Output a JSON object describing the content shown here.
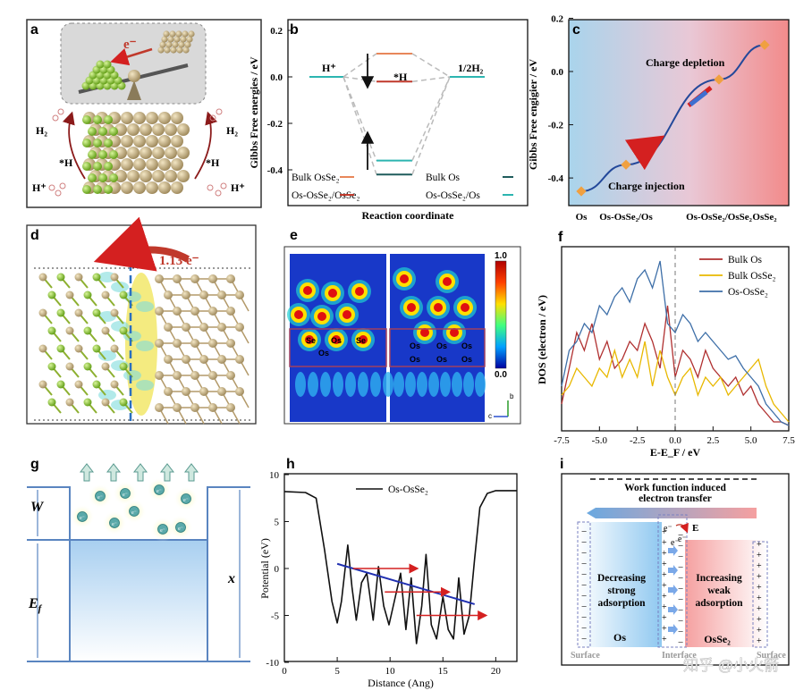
{
  "panels": {
    "a": {
      "letter": "a",
      "electron": "e⁻",
      "h2_left": "H₂",
      "h2_right": "H₂",
      "star_h_left": "*H",
      "star_h_right": "*H",
      "hplus_left": "H⁺",
      "hplus_right": "H⁺"
    },
    "d": {
      "letter": "d",
      "charge": "1.13 e⁻"
    },
    "e": {
      "letter": "e",
      "cb_max": "1.0",
      "cb_min": "0.0",
      "atom_os": "Os",
      "atom_se": "Se",
      "axis_b": "b",
      "axis_c": "c"
    },
    "g": {
      "letter": "g",
      "w_label": "W",
      "ef_label": "E",
      "ef_sub": "f",
      "x_label": "x",
      "electron": "e⁻"
    },
    "i": {
      "letter": "i",
      "title_line1": "Work function induced",
      "title_line2": "electron transfer",
      "left_text": [
        "Decreasing",
        "strong",
        "adsorption"
      ],
      "right_text": [
        "Increasing",
        "weak",
        "adsorption"
      ],
      "left_metal": "Os",
      "right_metal": "OsSe₂",
      "surface_left": "Surface",
      "surface_right": "Surface",
      "interface": "Interface",
      "e_label": "E",
      "electron": "e⁻",
      "watermark": "知乎 @小火箭"
    }
  },
  "colors": {
    "bulk_osse2": "#e8875a",
    "os_osse2_osse2": "#c0392b",
    "bulk_os": "#1f5c5c",
    "os_osse2_os": "#2cb5b0",
    "f_bulk_os": "#b03030",
    "f_bulk_osse2": "#e8b800",
    "f_os_osse2": "#3e6fa8"
  },
  "chart_data": [
    {
      "panel": "b",
      "type": "line",
      "ylabel": "Gibbs Free energies / eV",
      "xlabel": "Reaction coordinate",
      "ylim": [
        -0.45,
        0.22
      ],
      "yticks": [
        "0.2",
        "0.0",
        "-0.2",
        "-0.4"
      ],
      "states": [
        "H⁺",
        "*H",
        "1/2H₂"
      ],
      "series": [
        {
          "name": "Bulk OsSe₂",
          "values": [
            0.0,
            0.1,
            0.0
          ]
        },
        {
          "name": "Os-OsSe₂/OsSe₂",
          "values": [
            0.0,
            -0.02,
            0.0
          ]
        },
        {
          "name": "Bulk Os",
          "values": [
            0.0,
            -0.42,
            0.0
          ]
        },
        {
          "name": "Os-OsSe₂/Os",
          "values": [
            0.0,
            -0.36,
            0.0
          ]
        }
      ]
    },
    {
      "panel": "c",
      "type": "line",
      "ylabel": "Gibbs Free engigier / eV",
      "ylim": [
        -0.5,
        0.22
      ],
      "yticks": [
        "0.2",
        "0.0",
        "-0.2",
        "-0.4"
      ],
      "categories": [
        "Os",
        "Os-OsSe₂/Os",
        "Os-OsSe₂/OsSe₂",
        "OsSe₂"
      ],
      "values": [
        -0.45,
        -0.35,
        -0.03,
        0.1
      ],
      "annotations": [
        "Charge depletion",
        "Charge injection"
      ]
    },
    {
      "panel": "f",
      "type": "line",
      "ylabel": "DOS (electron / eV)",
      "xlabel": "E-E_F / eV",
      "xlim": [
        -7.5,
        7.5
      ],
      "xticks": [
        "-7.5",
        "-5.0",
        "-2.5",
        "0.0",
        "2.5",
        "5.0",
        "7.5"
      ],
      "x": [
        -7.5,
        -7.0,
        -6.5,
        -6.0,
        -5.5,
        -5.0,
        -4.5,
        -4.0,
        -3.5,
        -3.0,
        -2.5,
        -2.0,
        -1.5,
        -1.0,
        -0.5,
        0.0,
        0.5,
        1.0,
        1.5,
        2.0,
        2.5,
        3.0,
        3.5,
        4.0,
        4.5,
        5.0,
        5.5,
        6.0,
        6.5,
        7.0,
        7.5
      ],
      "series": [
        {
          "name": "Bulk Os",
          "values": [
            0.15,
            0.35,
            0.55,
            0.45,
            0.6,
            0.4,
            0.5,
            0.35,
            0.4,
            0.5,
            0.45,
            0.6,
            0.5,
            0.35,
            0.7,
            0.3,
            0.45,
            0.4,
            0.3,
            0.45,
            0.35,
            0.3,
            0.25,
            0.3,
            0.2,
            0.25,
            0.15,
            0.1,
            0.05,
            0.05,
            0.03
          ]
        },
        {
          "name": "Bulk OsSe₂",
          "values": [
            0.2,
            0.25,
            0.35,
            0.3,
            0.25,
            0.35,
            0.3,
            0.45,
            0.3,
            0.4,
            0.3,
            0.5,
            0.25,
            0.45,
            0.3,
            0.2,
            0.3,
            0.35,
            0.2,
            0.3,
            0.25,
            0.3,
            0.2,
            0.25,
            0.3,
            0.35,
            0.4,
            0.25,
            0.15,
            0.1,
            0.05
          ]
        },
        {
          "name": "Os-OsSe₂",
          "values": [
            0.25,
            0.45,
            0.5,
            0.6,
            0.55,
            0.7,
            0.65,
            0.75,
            0.8,
            0.72,
            0.85,
            0.9,
            0.8,
            0.95,
            0.6,
            0.55,
            0.65,
            0.6,
            0.5,
            0.55,
            0.5,
            0.45,
            0.4,
            0.42,
            0.35,
            0.3,
            0.25,
            0.15,
            0.1,
            0.05,
            0.03
          ]
        }
      ]
    },
    {
      "panel": "h",
      "type": "line",
      "ylabel": "Potential (eV)",
      "xlabel": "Distance (Ang)",
      "xlim": [
        0,
        22
      ],
      "ylim": [
        -10,
        10
      ],
      "xticks": [
        "0",
        "5",
        "10",
        "15",
        "20"
      ],
      "yticks": [
        "-10",
        "-5",
        "0",
        "5",
        "10"
      ],
      "x": [
        0,
        2,
        3,
        3.8,
        4.5,
        5.0,
        5.4,
        6.0,
        6.4,
        6.8,
        7.3,
        7.8,
        8.4,
        8.9,
        9.4,
        9.9,
        10.5,
        11.0,
        11.5,
        12.0,
        12.5,
        13.0,
        13.4,
        13.9,
        14.4,
        15.0,
        15.5,
        16.0,
        16.5,
        17.0,
        17.5,
        18.0,
        18.5,
        19.2,
        20.0,
        22.0
      ],
      "series": [
        {
          "name": "Os-OsSe₂",
          "values": [
            8.2,
            8.1,
            7.5,
            2.0,
            -3.5,
            -5.8,
            -3.5,
            2.5,
            -2.0,
            -5.5,
            -1.5,
            -0.5,
            -5.5,
            0.2,
            -4.0,
            -6.0,
            -3.0,
            -0.5,
            -6.5,
            -1.0,
            -8.0,
            -4.0,
            1.5,
            -6.0,
            -7.5,
            -3.0,
            -6.5,
            -7.5,
            -1.0,
            -7.0,
            -5.0,
            1.0,
            6.5,
            8.0,
            8.3,
            8.3
          ]
        }
      ],
      "trendline": {
        "x": [
          5,
          18
        ],
        "y": [
          0.5,
          -3.8
        ]
      }
    }
  ]
}
